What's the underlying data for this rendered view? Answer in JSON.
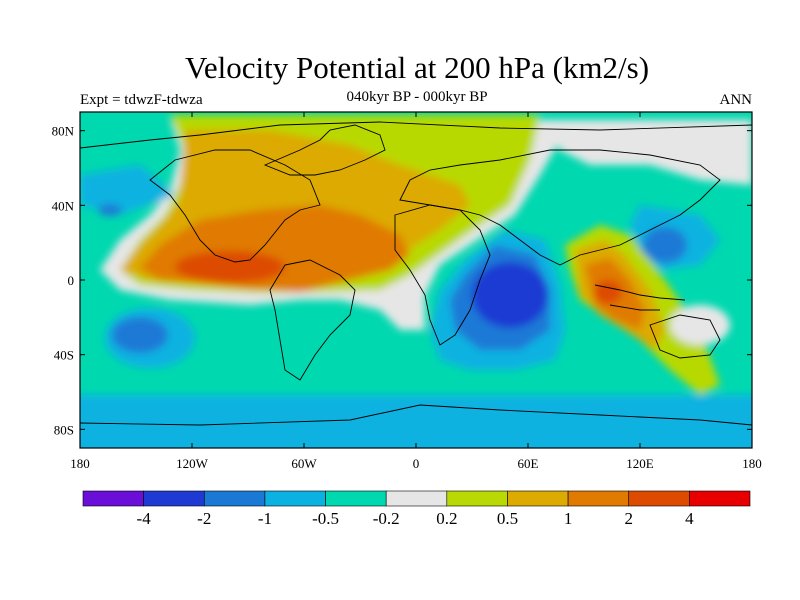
{
  "header": {
    "title": "Velocity Potential at 200 hPa (km2/s)",
    "subtitle": "040kyr BP - 000kyr BP",
    "left_label": "Expt = tdwzF-tdwza",
    "right_label": "ANN"
  },
  "chart_data": {
    "type": "heatmap",
    "title": "Velocity Potential at 200 hPa (km2/s)",
    "subtitle": "040kyr BP - 000kyr BP",
    "x_ticks": [
      "180",
      "120W",
      "60W",
      "0",
      "60E",
      "120E",
      "180"
    ],
    "y_ticks": [
      "80N",
      "40N",
      "0",
      "40S",
      "80S"
    ],
    "x_tick_values": [
      -180,
      -120,
      -60,
      0,
      60,
      120,
      180
    ],
    "y_tick_values": [
      80,
      40,
      0,
      -40,
      -80
    ],
    "xlim": [
      -180,
      180
    ],
    "ylim": [
      -90,
      90
    ],
    "colorbar": {
      "labels": [
        "-4",
        "-2",
        "-1",
        "-0.5",
        "-0.2",
        "0.2",
        "0.5",
        "1",
        "2",
        "4"
      ],
      "levels": [
        -4,
        -2,
        -1,
        -0.5,
        -0.2,
        0.2,
        0.5,
        1,
        2,
        4
      ],
      "colors": [
        "#6a0fd8",
        "#1f3ad3",
        "#1b79d6",
        "#0bb2e1",
        "#00d8b0",
        "#e6e6e6",
        "#b8d904",
        "#dcaa00",
        "#e07a00",
        "#dd4b00",
        "#e80000"
      ]
    },
    "features": [
      {
        "name": "positive-max-east-pacific",
        "lon": -90,
        "lat": 5,
        "value": 2.5
      },
      {
        "name": "positive-max-maritime-continent",
        "lon": 110,
        "lat": -10,
        "value": 2.5
      },
      {
        "name": "negative-min-indian-ocean",
        "lon": 55,
        "lat": -10,
        "value": -2.5
      },
      {
        "name": "negative-min-south-pacific",
        "lon": -150,
        "lat": -30,
        "value": -0.8
      }
    ]
  }
}
